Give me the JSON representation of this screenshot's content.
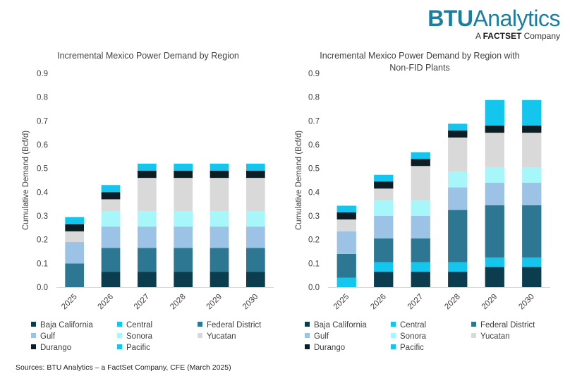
{
  "logo": {
    "brand": "BTU",
    "brand2": "Analytics",
    "tagline_a": "A",
    "tagline_fs": "FACTSET",
    "tagline_c": "Company"
  },
  "source": "Sources: BTU Analytics – a FactSet Company, CFE (March 2025)",
  "colors": {
    "Baja California": "#0b3d4f",
    "Central": "#14c5ee",
    "Federal District": "#2e7793",
    "Gulf": "#9cc3e6",
    "Sonora": "#a6f6fa",
    "Yucatan": "#d9d9d9",
    "Durango": "#0c1e25",
    "Pacific": "#14c5ee"
  },
  "chart_data": [
    {
      "type": "bar",
      "stacked": true,
      "title": "Incremental Mexico Power Demand by Region",
      "ylabel": "Cumulative Demand (Bcf/d)",
      "ylim": [
        0,
        0.9
      ],
      "yticks": [
        "0.0",
        "0.1",
        "0.2",
        "0.3",
        "0.4",
        "0.5",
        "0.6",
        "0.7",
        "0.8",
        "0.9"
      ],
      "categories": [
        "2025",
        "2026",
        "2027",
        "2028",
        "2029",
        "2030"
      ],
      "series": [
        {
          "name": "Baja California",
          "values": [
            0,
            0.065,
            0.065,
            0.065,
            0.065,
            0.065
          ]
        },
        {
          "name": "Central",
          "values": [
            0,
            0,
            0,
            0,
            0,
            0
          ]
        },
        {
          "name": "Federal District",
          "values": [
            0.1,
            0.1,
            0.1,
            0.1,
            0.1,
            0.1
          ]
        },
        {
          "name": "Gulf",
          "values": [
            0.09,
            0.09,
            0.09,
            0.09,
            0.09,
            0.09
          ]
        },
        {
          "name": "Sonora",
          "values": [
            0,
            0.065,
            0.065,
            0.065,
            0.065,
            0.065
          ]
        },
        {
          "name": "Yucatan",
          "values": [
            0.045,
            0.05,
            0.14,
            0.14,
            0.14,
            0.14
          ]
        },
        {
          "name": "Durango",
          "values": [
            0.03,
            0.03,
            0.03,
            0.03,
            0.03,
            0.03
          ]
        },
        {
          "name": "Pacific",
          "values": [
            0.03,
            0.03,
            0.03,
            0.03,
            0.03,
            0.03
          ]
        }
      ]
    },
    {
      "type": "bar",
      "stacked": true,
      "title": "Incremental Mexico Power Demand by Region with Non-FID Plants",
      "title_lines": [
        "Incremental Mexico Power Demand by Region with",
        "Non-FID Plants"
      ],
      "ylabel": "Cumulative Demand (Bcf/d)",
      "ylim": [
        0,
        0.9
      ],
      "yticks": [
        "0.0",
        "0.1",
        "0.2",
        "0.3",
        "0.4",
        "0.5",
        "0.6",
        "0.7",
        "0.8",
        "0.9"
      ],
      "categories": [
        "2025",
        "2026",
        "2027",
        "2028",
        "2029",
        "2030"
      ],
      "series": [
        {
          "name": "Baja California",
          "values": [
            0,
            0.065,
            0.065,
            0.065,
            0.085,
            0.085
          ]
        },
        {
          "name": "Central",
          "values": [
            0.04,
            0.04,
            0.04,
            0.04,
            0.04,
            0.04
          ]
        },
        {
          "name": "Federal District",
          "values": [
            0.1,
            0.1,
            0.1,
            0.22,
            0.22,
            0.22
          ]
        },
        {
          "name": "Gulf",
          "values": [
            0.095,
            0.095,
            0.095,
            0.095,
            0.095,
            0.095
          ]
        },
        {
          "name": "Sonora",
          "values": [
            0,
            0.065,
            0.065,
            0.065,
            0.065,
            0.065
          ]
        },
        {
          "name": "Yucatan",
          "values": [
            0.05,
            0.05,
            0.145,
            0.145,
            0.145,
            0.145
          ]
        },
        {
          "name": "Durango",
          "values": [
            0.03,
            0.03,
            0.03,
            0.03,
            0.03,
            0.03
          ]
        },
        {
          "name": "Pacific",
          "values": [
            0.028,
            0.028,
            0.028,
            0.028,
            0.108,
            0.108
          ]
        }
      ]
    }
  ]
}
